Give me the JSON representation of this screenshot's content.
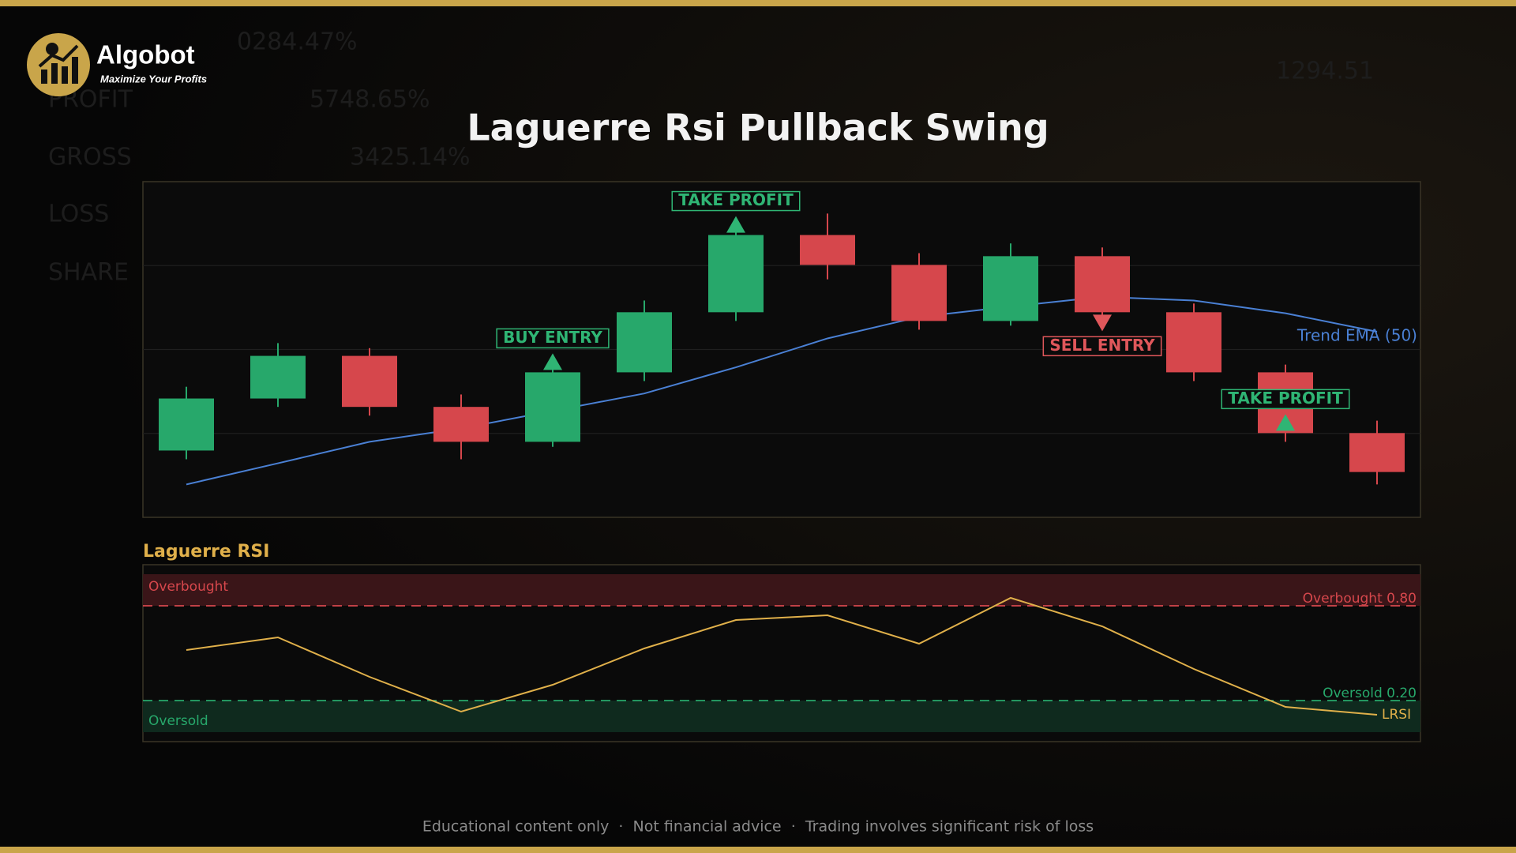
{
  "header": {
    "brand": "Algobot",
    "tagline": "Maximize Your Profits"
  },
  "background": {
    "texts": [
      "0284.47%",
      "PROFIT",
      "5748.65%",
      "GROSS",
      "3425.14%",
      "LOSS",
      "SHARE",
      "1294.51"
    ]
  },
  "footer": "Educational content only  ·  Not financial advice  ·  Trading involves significant risk of loss",
  "chart_data": [
    {
      "type": "candlestick",
      "title": "Laguerre Rsi Pullback Swing",
      "open": [
        19.9,
        35.4,
        48.1,
        32.9,
        22.5,
        43.2,
        61.1,
        84.1,
        75.2,
        58.5,
        77.8,
        61.1,
        43.2,
        25.1
      ],
      "high": [
        38.9,
        51.9,
        50.4,
        36.6,
        44.7,
        64.6,
        87.0,
        90.5,
        78.7,
        81.6,
        80.4,
        63.7,
        45.5,
        28.8
      ],
      "low": [
        17.3,
        32.9,
        30.3,
        17.3,
        21.0,
        40.6,
        58.5,
        70.9,
        55.9,
        57.1,
        58.5,
        40.6,
        22.5,
        9.8
      ],
      "close": [
        35.4,
        48.1,
        32.9,
        22.5,
        43.2,
        61.1,
        84.1,
        75.2,
        58.5,
        77.8,
        61.1,
        43.2,
        25.1,
        13.5
      ],
      "up_color": "#27a86b",
      "down_color": "#d6474c",
      "series": [
        {
          "name": "Trend EMA (50)",
          "color": "#4a80d4",
          "values": [
            9.8,
            16.1,
            22.5,
            26.5,
            31.7,
            36.9,
            44.7,
            53.3,
            59.7,
            62.8,
            65.7,
            64.6,
            60.8,
            55.3
          ]
        }
      ],
      "signals": [
        null,
        null,
        null,
        null,
        {
          "label": "BUY ENTRY",
          "color": "#2fb574",
          "direction": "up"
        },
        null,
        {
          "label": "TAKE PROFIT",
          "color": "#2fb574",
          "direction": "up"
        },
        null,
        null,
        null,
        {
          "label": "SELL ENTRY",
          "color": "#e0575b",
          "direction": "down"
        },
        null,
        {
          "label": "TAKE PROFIT",
          "color": "#2fb574",
          "direction": "up"
        },
        null
      ],
      "ylim": [
        0,
        100
      ],
      "yticks": [
        25,
        50,
        75
      ],
      "grid": true
    },
    {
      "type": "line",
      "title": "Laguerre RSI",
      "series": [
        {
          "name": "LRSI",
          "color": "#e0b04a",
          "values": [
            0.52,
            0.6,
            0.35,
            0.13,
            0.3,
            0.53,
            0.71,
            0.74,
            0.56,
            0.85,
            0.67,
            0.4,
            0.16,
            0.11
          ]
        }
      ],
      "zones": [
        {
          "label": "Overbought",
          "from": 0.8,
          "to": 1,
          "color": "#3a1518",
          "line_color": "#d6474c"
        },
        {
          "label": "Oversold",
          "from": 0,
          "to": 0.2,
          "color": "#0f2a1e",
          "line_color": "#27a86b"
        }
      ],
      "ylim": [
        -0.06,
        1.06
      ],
      "yticks": [
        {
          "value": 0.8,
          "label": "Overbought 0.80"
        },
        {
          "value": 0.2,
          "label": "Oversold 0.20"
        }
      ]
    }
  ]
}
